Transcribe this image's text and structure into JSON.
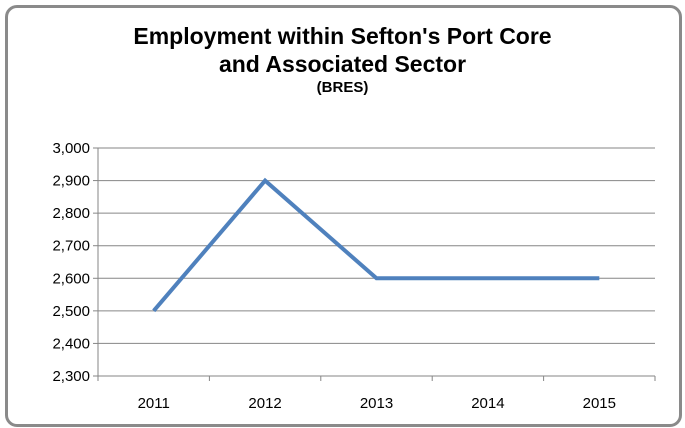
{
  "chart_data": {
    "type": "line",
    "title": "Employment within Sefton's Port Core",
    "title_line2": "and Associated Sector",
    "subtitle": "(BRES)",
    "xlabel": "",
    "ylabel": "",
    "categories": [
      "2011",
      "2012",
      "2013",
      "2014",
      "2015"
    ],
    "series": [
      {
        "values": [
          2500,
          2900,
          2600,
          2600,
          2600
        ],
        "color": "#4f81bd"
      }
    ],
    "ylim": [
      2300,
      3000
    ],
    "yticks": [
      2300,
      2400,
      2500,
      2600,
      2700,
      2800,
      2900,
      3000
    ],
    "ytick_labels": [
      "2,300",
      "2,400",
      "2,500",
      "2,600",
      "2,700",
      "2,800",
      "2,900",
      "3,000"
    ],
    "grid": true,
    "legend": "none"
  }
}
